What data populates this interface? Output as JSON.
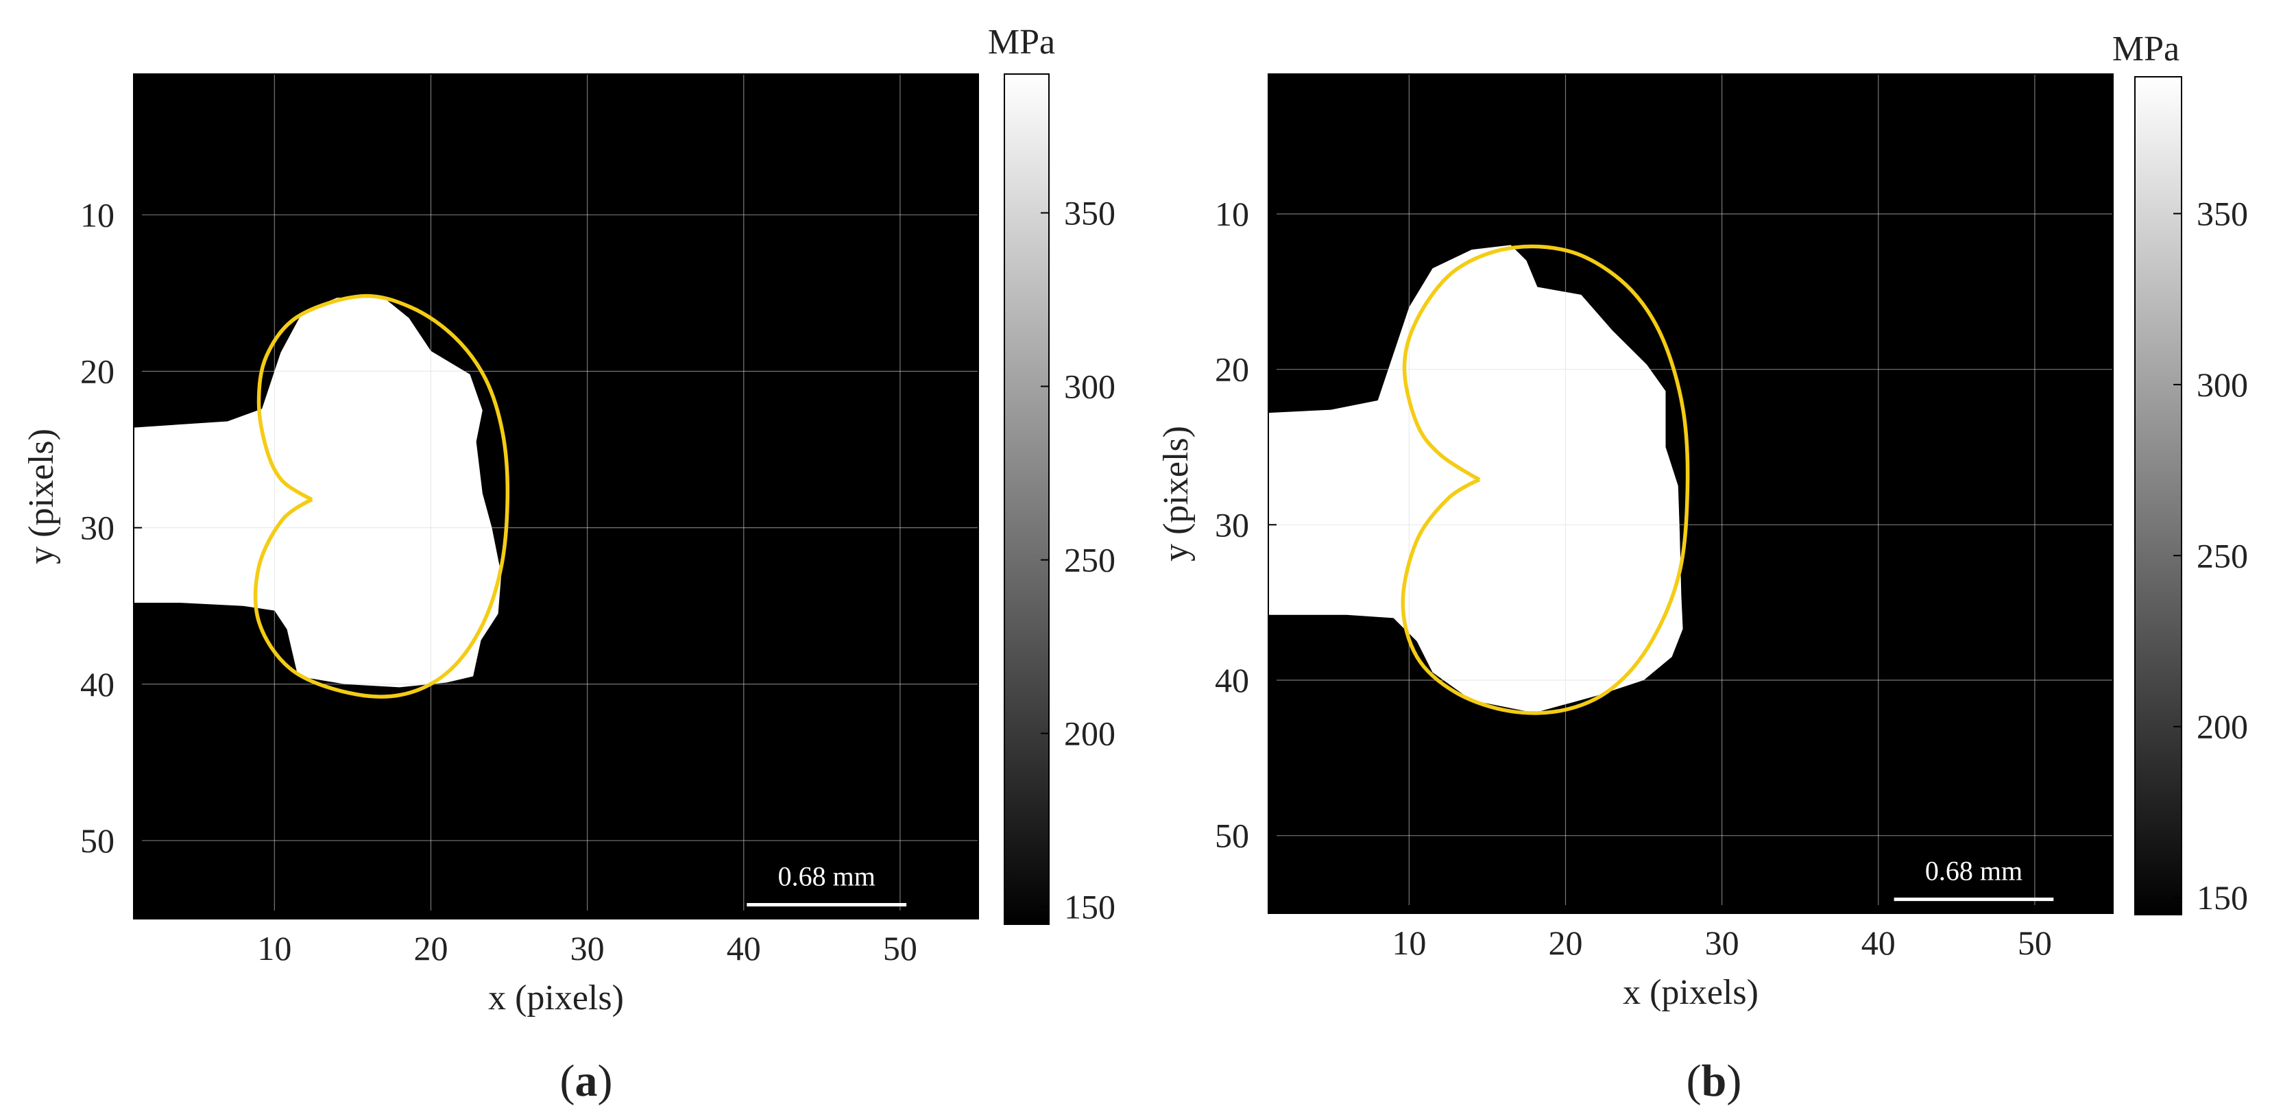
{
  "colors": {
    "background": "#000000",
    "plastic_zone": "#ffffff",
    "boundary": "#f4cc14",
    "grid": "#d8d8d8",
    "colormap_low": "#000000",
    "colormap_high": "#ffffff"
  },
  "chart_data": [
    {
      "type": "heatmap",
      "panel_label": "a",
      "xlabel": "x (pixels)",
      "ylabel": "y (pixels)",
      "xlim": [
        1,
        55
      ],
      "ylim": [
        55,
        1
      ],
      "x_ticks": [
        10,
        20,
        30,
        40,
        50
      ],
      "y_ticks": [
        10,
        20,
        30,
        40,
        50
      ],
      "grid": true,
      "colorbar": {
        "unit": "MPa",
        "range": [
          145,
          390
        ],
        "ticks": [
          150,
          200,
          250,
          300,
          350
        ]
      },
      "scale_bar": {
        "label": "0.68 mm",
        "x_start": 40.2,
        "x_end": 50.4,
        "y": 54.1
      },
      "white_region": [
        [
          1,
          23.6
        ],
        [
          7,
          23.2
        ],
        [
          9.2,
          22.4
        ],
        [
          10.4,
          18.8
        ],
        [
          11.8,
          16.2
        ],
        [
          14,
          15.3
        ],
        [
          17,
          15.3
        ],
        [
          18.6,
          16.6
        ],
        [
          20,
          18.7
        ],
        [
          22.5,
          20.2
        ],
        [
          23.3,
          22.5
        ],
        [
          22.9,
          24.5
        ],
        [
          23.3,
          27.8
        ],
        [
          23.9,
          30
        ],
        [
          24.5,
          33
        ],
        [
          24.3,
          35.5
        ],
        [
          23.2,
          37.2
        ],
        [
          22.7,
          39.5
        ],
        [
          21,
          39.9
        ],
        [
          18,
          40.2
        ],
        [
          14.5,
          40
        ],
        [
          11.5,
          39.5
        ],
        [
          10.8,
          36.5
        ],
        [
          10,
          35.3
        ],
        [
          8,
          35
        ],
        [
          4,
          34.8
        ],
        [
          1,
          34.8
        ]
      ],
      "boundary_curve": {
        "cusp": [
          12.4,
          28.2
        ],
        "points": [
          [
            12.4,
            28.2
          ],
          [
            10.5,
            27
          ],
          [
            9.5,
            25
          ],
          [
            9,
            22
          ],
          [
            9.5,
            19
          ],
          [
            11.5,
            16.5
          ],
          [
            15.5,
            15.2
          ],
          [
            18.7,
            15.9
          ],
          [
            21.5,
            17.8
          ],
          [
            23.5,
            20.5
          ],
          [
            24.6,
            24
          ],
          [
            24.9,
            28
          ],
          [
            24.5,
            32.5
          ],
          [
            23.2,
            36.4
          ],
          [
            21,
            39.3
          ],
          [
            18,
            40.7
          ],
          [
            14.5,
            40.5
          ],
          [
            11,
            39
          ],
          [
            9,
            36
          ],
          [
            9,
            32.5
          ],
          [
            10.5,
            29.5
          ],
          [
            12.4,
            28.2
          ]
        ]
      }
    },
    {
      "type": "heatmap",
      "panel_label": "b",
      "xlabel": "x (pixels)",
      "ylabel": "y (pixels)",
      "xlim": [
        1,
        55
      ],
      "ylim": [
        55,
        1
      ],
      "x_ticks": [
        10,
        20,
        30,
        40,
        50
      ],
      "y_ticks": [
        10,
        20,
        30,
        40,
        50
      ],
      "grid": true,
      "colorbar": {
        "unit": "MPa",
        "range": [
          145,
          390
        ],
        "ticks": [
          150,
          200,
          250,
          300,
          350
        ]
      },
      "scale_bar": {
        "label": "0.68 mm",
        "x_start": 41,
        "x_end": 51.2,
        "y": 54.1
      },
      "white_region": [
        [
          1,
          22.8
        ],
        [
          5,
          22.6
        ],
        [
          8,
          22
        ],
        [
          9,
          19
        ],
        [
          10,
          16
        ],
        [
          11.5,
          13.5
        ],
        [
          14,
          12.3
        ],
        [
          16.5,
          12
        ],
        [
          17.5,
          13
        ],
        [
          18.2,
          14.7
        ],
        [
          21,
          15.2
        ],
        [
          23,
          17.5
        ],
        [
          25.2,
          19.7
        ],
        [
          26.4,
          21.4
        ],
        [
          26.4,
          25
        ],
        [
          27.2,
          27.5
        ],
        [
          27.3,
          30.5
        ],
        [
          27.4,
          34.5
        ],
        [
          27.5,
          36.7
        ],
        [
          26.8,
          38.5
        ],
        [
          25,
          40
        ],
        [
          22,
          41
        ],
        [
          18,
          42.1
        ],
        [
          14,
          41.3
        ],
        [
          11.5,
          39.5
        ],
        [
          10.5,
          37.5
        ],
        [
          9,
          36
        ],
        [
          6,
          35.8
        ],
        [
          1,
          35.8
        ]
      ],
      "boundary_curve": {
        "cusp": [
          14.5,
          27.1
        ],
        "points": [
          [
            14.5,
            27.1
          ],
          [
            12,
            25.5
          ],
          [
            10.5,
            23.5
          ],
          [
            9.7,
            20
          ],
          [
            10.4,
            17
          ],
          [
            12.5,
            14
          ],
          [
            15.2,
            12.5
          ],
          [
            18.3,
            12.1
          ],
          [
            21.3,
            12.8
          ],
          [
            24.2,
            14.9
          ],
          [
            26.2,
            18
          ],
          [
            27.5,
            22.5
          ],
          [
            27.8,
            27.5
          ],
          [
            27.3,
            33
          ],
          [
            25.5,
            37.5
          ],
          [
            23,
            40.5
          ],
          [
            20,
            41.9
          ],
          [
            16.5,
            42
          ],
          [
            13,
            40.8
          ],
          [
            10.5,
            38.5
          ],
          [
            9.6,
            35
          ],
          [
            10.5,
            31
          ],
          [
            12.5,
            28.3
          ],
          [
            14.5,
            27.1
          ]
        ]
      }
    }
  ]
}
